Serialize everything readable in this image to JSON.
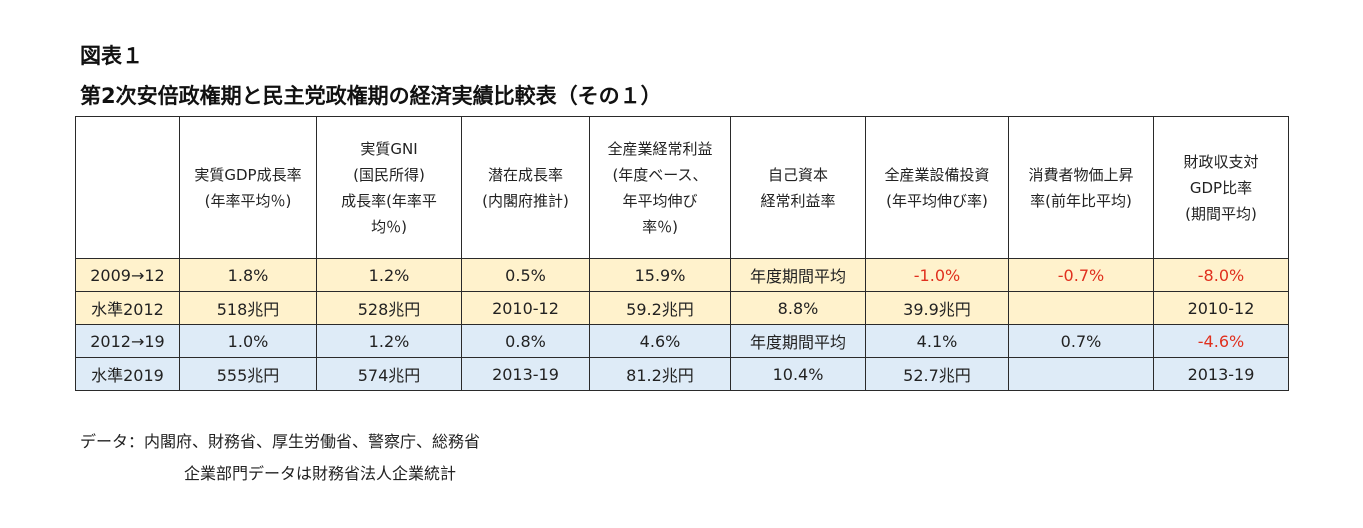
{
  "figure_label": "図表１",
  "title": "第2次安倍政権期と民主党政権期の経済実績比較表（その１）",
  "table": {
    "headers": [
      "",
      "実質GDP成長率\n(年率平均％)",
      "実質GNI\n(国民所得)\n成長率(年率平\n均％)",
      "潜在成長率\n(内閣府推計)",
      "全産業経常利益\n(年度ベース、\n年平均伸び\n率％)",
      "自己資本\n経常利益率",
      "全産業設備投資\n(年平均伸び率)",
      "消費者物価上昇\n率(前年比平均)",
      "財政収支対\nGDP比率\n(期間平均)"
    ],
    "rows": [
      {
        "label": "2009→12",
        "cells": [
          "1.8%",
          "1.2%",
          "0.5%",
          "15.9%",
          "年度期間平均",
          "-1.0%",
          "-0.7%",
          "-8.0%"
        ]
      },
      {
        "label": "水準2012",
        "cells": [
          "518兆円",
          "528兆円",
          "2010-12",
          "59.2兆円",
          "8.8%",
          "39.9兆円",
          "",
          "2010-12"
        ]
      },
      {
        "label": "2012→19",
        "cells": [
          "1.0%",
          "1.2%",
          "0.8%",
          "4.6%",
          "年度期間平均",
          "4.1%",
          "0.7%",
          "-4.6%"
        ]
      },
      {
        "label": "水準2019",
        "cells": [
          "555兆円",
          "574兆円",
          "2013-19",
          "81.2兆円",
          "10.4%",
          "52.7兆円",
          "",
          "2013-19"
        ]
      }
    ]
  },
  "notes": {
    "line1": "データ：内閣府、財務省、厚生労働省、警察庁、総務省",
    "line2": "企業部門データは財務省法人企業統計"
  },
  "colors": {
    "democratic_period_fill": "#fff2cc",
    "abe_period_fill": "#deebf7",
    "negative_text": "#e0301e"
  }
}
